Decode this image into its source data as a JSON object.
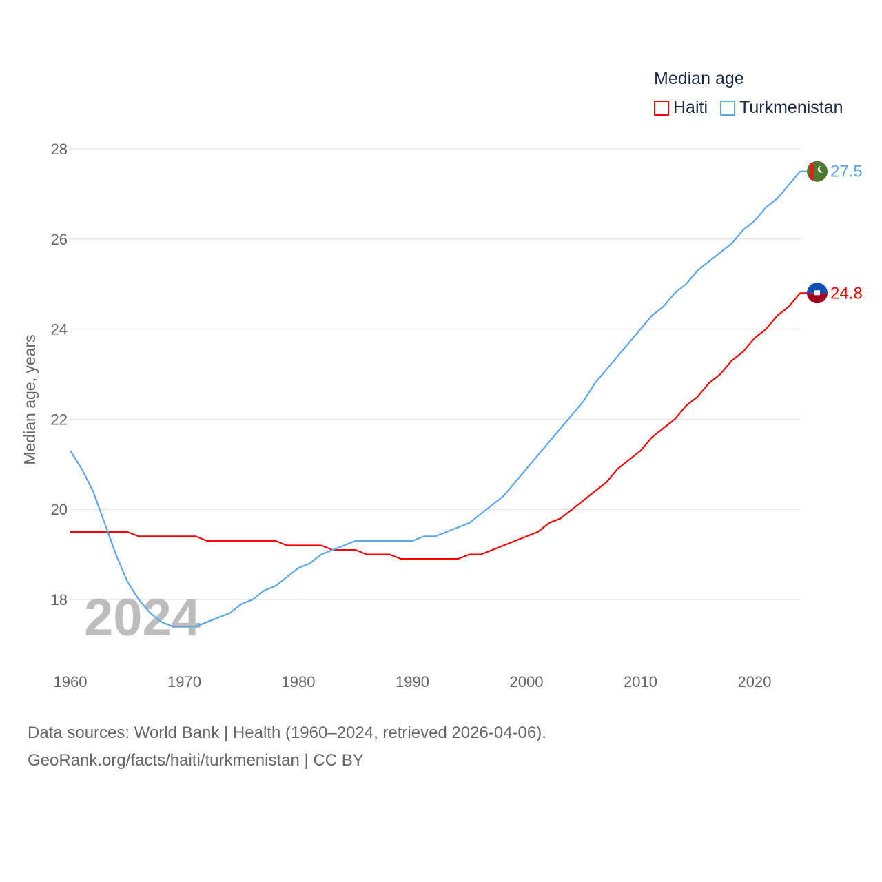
{
  "chart_data": {
    "type": "line",
    "title": "Median age",
    "xlabel": "",
    "ylabel": "Median age, years",
    "ylim": [
      17,
      28.5
    ],
    "xlim": [
      1960,
      2024
    ],
    "yticks": [
      18,
      20,
      22,
      24,
      26,
      28
    ],
    "xticks": [
      1960,
      1970,
      1980,
      1990,
      2000,
      2010,
      2020
    ],
    "grid": true,
    "legend_placement": "top-right",
    "year_watermark": "2024",
    "x": [
      1960,
      1961,
      1962,
      1963,
      1964,
      1965,
      1966,
      1967,
      1968,
      1969,
      1970,
      1971,
      1972,
      1973,
      1974,
      1975,
      1976,
      1977,
      1978,
      1979,
      1980,
      1981,
      1982,
      1983,
      1984,
      1985,
      1986,
      1987,
      1988,
      1989,
      1990,
      1991,
      1992,
      1993,
      1994,
      1995,
      1996,
      1997,
      1998,
      1999,
      2000,
      2001,
      2002,
      2003,
      2004,
      2005,
      2006,
      2007,
      2008,
      2009,
      2010,
      2011,
      2012,
      2013,
      2014,
      2015,
      2016,
      2017,
      2018,
      2019,
      2020,
      2021,
      2022,
      2023,
      2024
    ],
    "series": [
      {
        "name": "Haiti",
        "color": "#ff0000",
        "end_label": "24.8",
        "values": [
          19.5,
          19.5,
          19.5,
          19.5,
          19.5,
          19.5,
          19.4,
          19.4,
          19.4,
          19.4,
          19.4,
          19.4,
          19.3,
          19.3,
          19.3,
          19.3,
          19.3,
          19.3,
          19.3,
          19.2,
          19.2,
          19.2,
          19.2,
          19.1,
          19.1,
          19.1,
          19.0,
          19.0,
          19.0,
          18.9,
          18.9,
          18.9,
          18.9,
          18.9,
          18.9,
          19.0,
          19.0,
          19.1,
          19.2,
          19.3,
          19.4,
          19.5,
          19.7,
          19.8,
          20.0,
          20.2,
          20.4,
          20.6,
          20.9,
          21.1,
          21.3,
          21.6,
          21.8,
          22.0,
          22.3,
          22.5,
          22.8,
          23.0,
          23.3,
          23.5,
          23.8,
          24.0,
          24.3,
          24.5,
          24.8
        ]
      },
      {
        "name": "Turkmenistan",
        "color": "#5ba7ef",
        "end_label": "27.5",
        "values": [
          21.3,
          20.9,
          20.4,
          19.7,
          19.0,
          18.4,
          18.0,
          17.7,
          17.5,
          17.4,
          17.4,
          17.4,
          17.5,
          17.6,
          17.7,
          17.9,
          18.0,
          18.2,
          18.3,
          18.5,
          18.7,
          18.8,
          19.0,
          19.1,
          19.2,
          19.3,
          19.3,
          19.3,
          19.3,
          19.3,
          19.3,
          19.4,
          19.4,
          19.5,
          19.6,
          19.7,
          19.9,
          20.1,
          20.3,
          20.6,
          20.9,
          21.2,
          21.5,
          21.8,
          22.1,
          22.4,
          22.8,
          23.1,
          23.4,
          23.7,
          24.0,
          24.3,
          24.5,
          24.8,
          25.0,
          25.3,
          25.5,
          25.7,
          25.9,
          26.2,
          26.4,
          26.7,
          26.9,
          27.2,
          27.5
        ]
      }
    ]
  },
  "footer": {
    "line1": "Data sources: World Bank | Health (1960–2024, retrieved 2026-04-06).",
    "line2": "GeoRank.org/facts/haiti/turkmenistan | CC BY"
  }
}
